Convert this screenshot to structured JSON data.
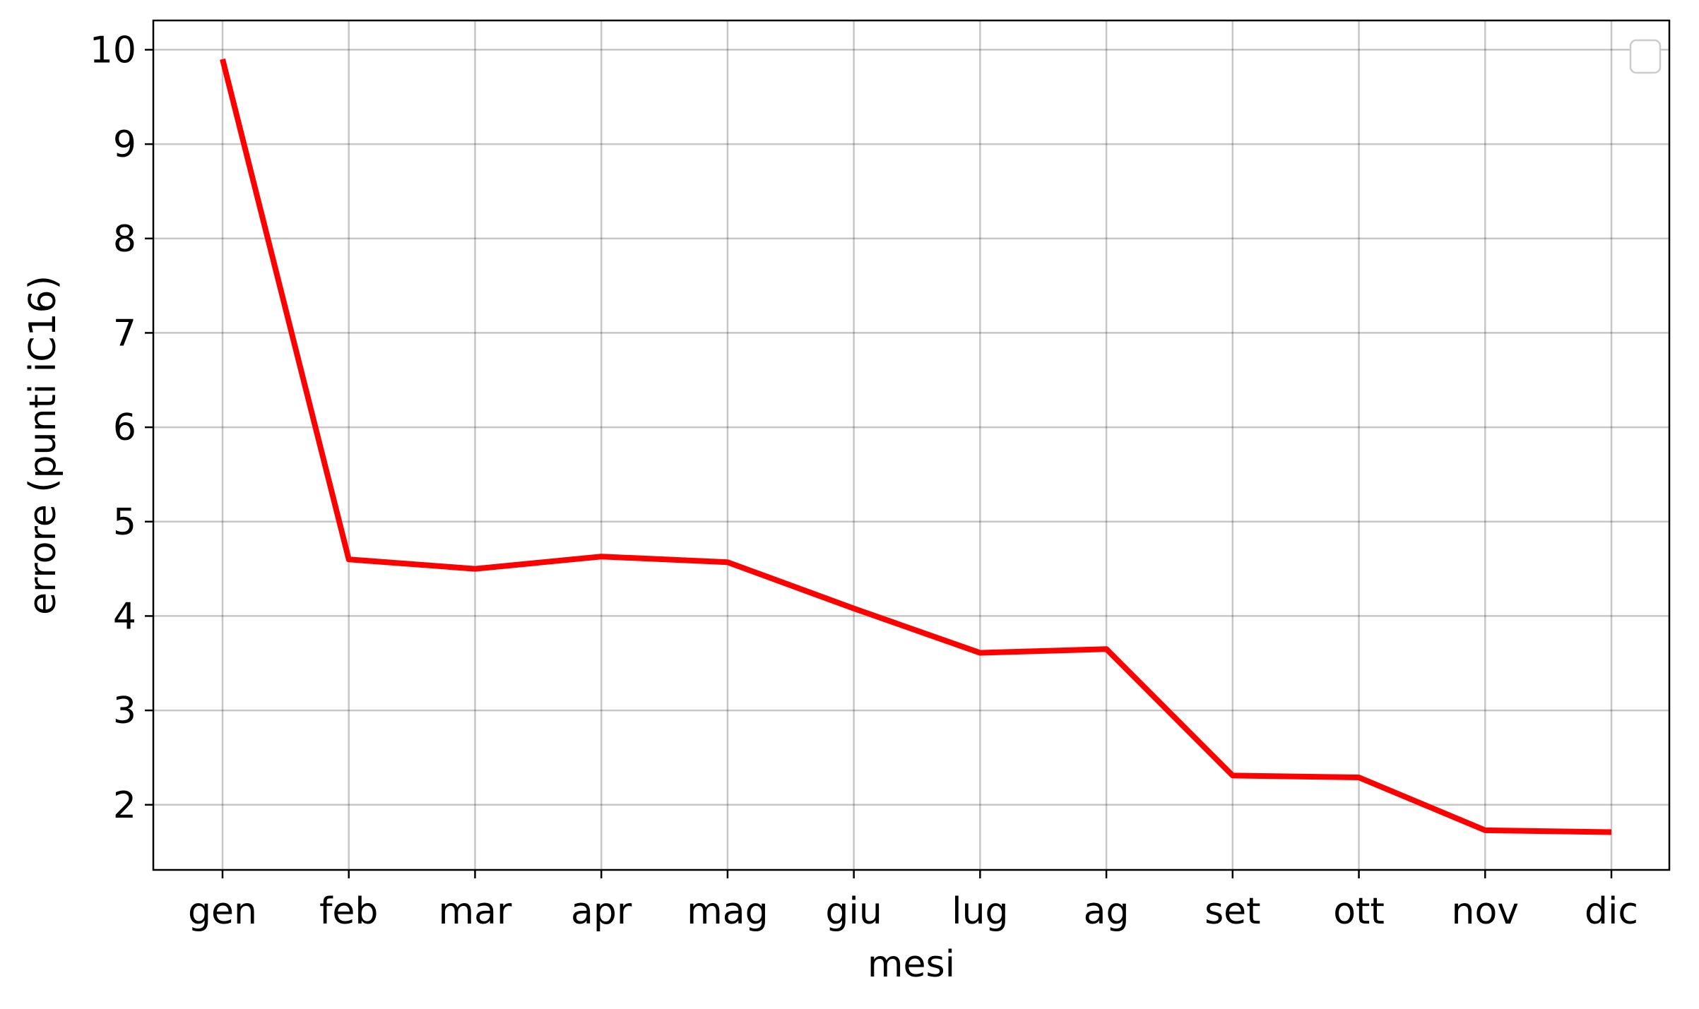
{
  "chart_data": {
    "type": "line",
    "title": "",
    "xlabel": "mesi",
    "ylabel": "errore (punti iC16)",
    "categories": [
      "gen",
      "feb",
      "mar",
      "apr",
      "mag",
      "giu",
      "lug",
      "ag",
      "set",
      "ott",
      "nov",
      "dic"
    ],
    "series": [
      {
        "values": [
          9.9,
          4.6,
          4.5,
          4.63,
          4.57,
          4.08,
          3.61,
          3.65,
          2.31,
          2.29,
          1.73,
          1.71
        ],
        "color": "#ff0000"
      }
    ],
    "yticks": [
      2,
      3,
      4,
      5,
      6,
      7,
      8,
      9,
      10
    ],
    "ylim": [
      1.31,
      10.31
    ],
    "grid": true,
    "legend": "top-right (empty)"
  }
}
